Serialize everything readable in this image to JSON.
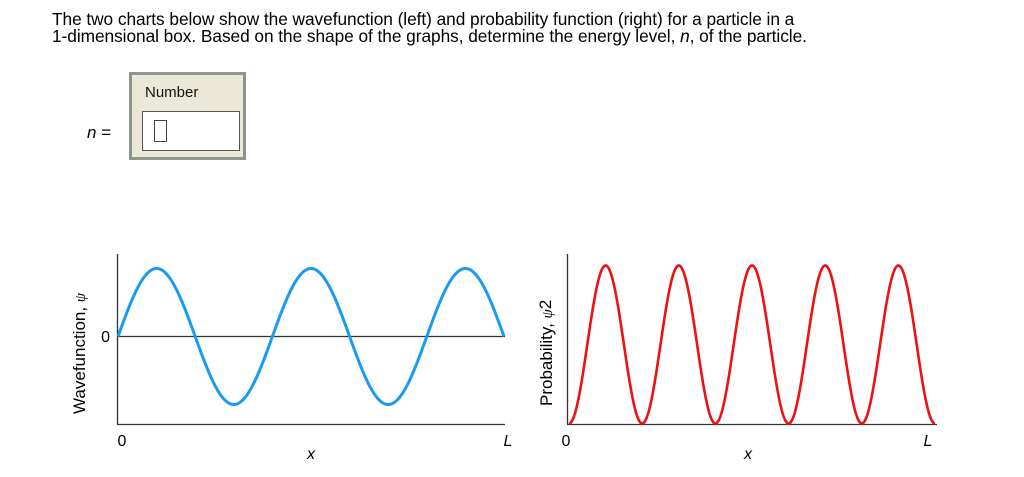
{
  "question": {
    "line1": "The two charts below show the wavefunction (left) and probability function (right) for a particle in a",
    "line2_before": "1-dimensional box.  Based on the shape of the graphs, determine the energy level, ",
    "line2_var": "n",
    "line2_after": ", of the particle."
  },
  "answer": {
    "variable": "n",
    "equals": " =",
    "box_label": "Number",
    "value": ""
  },
  "colors": {
    "wavefunction": "#1a9af0",
    "probability": "#ee1111",
    "axis": "#333333",
    "answer_bg": "#ece8d8",
    "answer_border": "#8e958f"
  },
  "chart_data": [
    {
      "type": "line",
      "title": "",
      "xlabel": "x",
      "ylabel": "Wavefunction, ψ",
      "ylabel_text": "Wavefunction, ",
      "ylabel_symbol": "ψ",
      "x_ticks": [
        "0",
        "L"
      ],
      "y_ticks": [
        "0"
      ],
      "xlim": [
        0,
        1
      ],
      "ylim": [
        -1.2,
        1.2
      ],
      "grid": false,
      "series": [
        {
          "name": "psi",
          "function": "sin(5*pi*x/L)",
          "n": 5,
          "x": [
            0,
            0.1,
            0.2,
            0.3,
            0.4,
            0.5,
            0.6,
            0.7,
            0.8,
            0.9,
            1.0
          ],
          "values": [
            0,
            1,
            0,
            -1,
            0,
            1,
            0,
            -1,
            0,
            1,
            0
          ]
        }
      ],
      "color": "#1a9af0"
    },
    {
      "type": "line",
      "title": "",
      "xlabel": "x",
      "ylabel": "Probability, ψ2",
      "ylabel_text": "Probability, ",
      "ylabel_symbol": "ψ",
      "ylabel_sup": "2",
      "x_ticks": [
        "0",
        "L"
      ],
      "y_ticks": [
        "0"
      ],
      "xlim": [
        0,
        1
      ],
      "ylim": [
        0,
        1.1
      ],
      "grid": false,
      "series": [
        {
          "name": "psi^2",
          "function": "sin^2(5*pi*x/L)",
          "n": 5,
          "x": [
            0,
            0.1,
            0.2,
            0.3,
            0.4,
            0.5,
            0.6,
            0.7,
            0.8,
            0.9,
            1.0
          ],
          "values": [
            0,
            1,
            0,
            1,
            0,
            1,
            0,
            1,
            0,
            1,
            0
          ]
        }
      ],
      "color": "#ee1111"
    }
  ]
}
